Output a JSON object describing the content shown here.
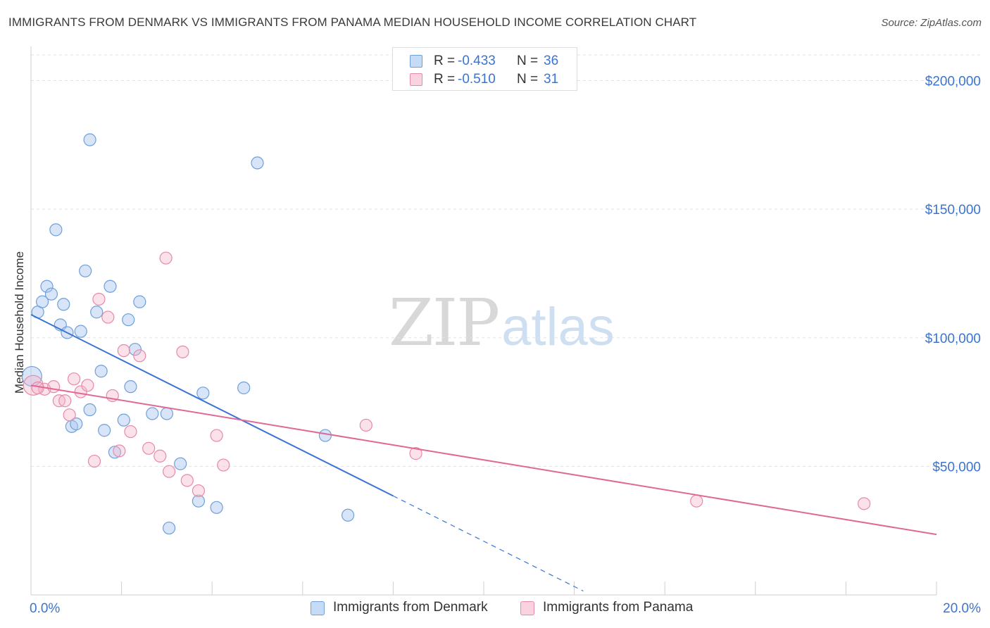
{
  "title": "IMMIGRANTS FROM DENMARK VS IMMIGRANTS FROM PANAMA MEDIAN HOUSEHOLD INCOME CORRELATION CHART",
  "source": "Source: ZipAtlas.com",
  "watermark": {
    "left": "ZIP",
    "right": "atlas"
  },
  "legend_top": {
    "rows": [
      {
        "r_label": "R =",
        "r_value": "-0.433",
        "n_label": "N =",
        "n_value": "36",
        "color": "#a8c6ef"
      },
      {
        "r_label": "R =",
        "r_value": "-0.510",
        "n_label": "N =",
        "n_value": "31",
        "color": "#f5b5c8"
      }
    ]
  },
  "chart_data": {
    "type": "scatter",
    "title": "IMMIGRANTS FROM DENMARK VS IMMIGRANTS FROM PANAMA MEDIAN HOUSEHOLD INCOME CORRELATION CHART",
    "xlabel": "",
    "ylabel": "Median Household Income",
    "xlim": [
      0,
      20
    ],
    "ylim": [
      0,
      210000
    ],
    "x_tick_labels": [
      "0.0%",
      "20.0%"
    ],
    "y_ticks": [
      50000,
      100000,
      150000,
      200000
    ],
    "y_tick_labels": [
      "$50,000",
      "$100,000",
      "$150,000",
      "$200,000"
    ],
    "grid": true,
    "legend_position": "bottom",
    "series": [
      {
        "name": "Immigrants from Denmark",
        "color": "#a8c6ef",
        "stroke": "#6f9fd8",
        "line_color": "#3a74d0",
        "points": [
          [
            0.02,
            85000
          ],
          [
            0.15,
            110000
          ],
          [
            0.25,
            114000
          ],
          [
            0.35,
            120000
          ],
          [
            0.45,
            117000
          ],
          [
            0.55,
            142000
          ],
          [
            0.65,
            105000
          ],
          [
            0.72,
            113000
          ],
          [
            0.8,
            102000
          ],
          [
            0.9,
            65500
          ],
          [
            1.0,
            66500
          ],
          [
            1.1,
            102500
          ],
          [
            1.2,
            126000
          ],
          [
            1.3,
            72000
          ],
          [
            1.45,
            110000
          ],
          [
            1.55,
            87000
          ],
          [
            1.62,
            64000
          ],
          [
            1.75,
            120000
          ],
          [
            1.85,
            55500
          ],
          [
            2.05,
            68000
          ],
          [
            2.15,
            107000
          ],
          [
            2.2,
            81000
          ],
          [
            2.3,
            95500
          ],
          [
            2.4,
            114000
          ],
          [
            2.68,
            70500
          ],
          [
            3.0,
            70500
          ],
          [
            3.3,
            51000
          ],
          [
            3.7,
            36500
          ],
          [
            3.8,
            78500
          ],
          [
            4.1,
            34000
          ],
          [
            4.7,
            80500
          ],
          [
            1.3,
            177000
          ],
          [
            5.0,
            168000
          ],
          [
            6.5,
            62000
          ],
          [
            7.0,
            31000
          ],
          [
            3.05,
            26000
          ]
        ],
        "trend": {
          "x_start": 0.0,
          "y_start": 109000,
          "x_solid_end": 8.0,
          "y_solid_end": 38500,
          "x_dash_end": 12.2,
          "y_dash_end": 1500
        }
      },
      {
        "name": "Immigrants from Panama",
        "color": "#f5b5c8",
        "stroke": "#e88aa7",
        "line_color": "#e06896",
        "points": [
          [
            0.05,
            81500
          ],
          [
            0.3,
            80000
          ],
          [
            0.5,
            81000
          ],
          [
            0.62,
            75500
          ],
          [
            0.75,
            75500
          ],
          [
            0.85,
            70000
          ],
          [
            0.95,
            84000
          ],
          [
            1.1,
            79000
          ],
          [
            1.25,
            81500
          ],
          [
            1.4,
            52000
          ],
          [
            1.5,
            115000
          ],
          [
            1.7,
            108000
          ],
          [
            1.8,
            77500
          ],
          [
            1.95,
            56000
          ],
          [
            2.05,
            95000
          ],
          [
            2.2,
            63500
          ],
          [
            2.4,
            93000
          ],
          [
            2.6,
            57000
          ],
          [
            2.85,
            54000
          ],
          [
            3.05,
            48000
          ],
          [
            2.98,
            131000
          ],
          [
            3.35,
            94500
          ],
          [
            3.45,
            44500
          ],
          [
            3.7,
            40500
          ],
          [
            4.1,
            62000
          ],
          [
            4.25,
            50500
          ],
          [
            7.4,
            66000
          ],
          [
            8.5,
            55000
          ],
          [
            14.7,
            36500
          ],
          [
            18.4,
            35500
          ],
          [
            0.15,
            80500
          ]
        ],
        "trend": {
          "x_start": 0.0,
          "y_start": 81500,
          "x_end": 20.0,
          "y_end": 23500
        }
      }
    ]
  }
}
